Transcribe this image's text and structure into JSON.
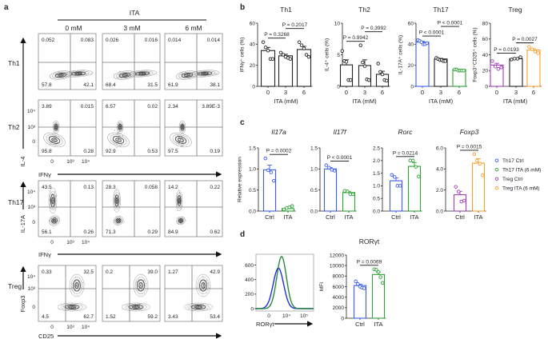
{
  "panel_labels": [
    "a",
    "b",
    "c",
    "d"
  ],
  "panel_a": {
    "treatment": "ITA",
    "columns": [
      "0 mM",
      "3 mM",
      "6 mM"
    ],
    "rows": [
      {
        "label": "Th1",
        "quadrants": [
          [
            "0.052",
            "0.083",
            "57.8",
            "42.1"
          ],
          [
            "0.026",
            "0.016",
            "68.4",
            "31.5"
          ],
          [
            "0.014",
            "0.014",
            "61.9",
            "38.1"
          ]
        ]
      },
      {
        "label": "Th2",
        "quadrants": [
          [
            "3.89",
            "0.015",
            "95.8",
            "0.28"
          ],
          [
            "6.57",
            "0.02",
            "92.9",
            "0.53"
          ],
          [
            "2.34",
            "3.89E-3",
            "97.5",
            "0.19"
          ]
        ]
      },
      {
        "label": "Th17",
        "quadrants": [
          [
            "43.5",
            "0.13",
            "56.1",
            "0.26"
          ],
          [
            "28.3",
            "0.058",
            "71.3",
            "0.29"
          ],
          [
            "14.2",
            "0.22",
            "84.9",
            "0.62"
          ]
        ]
      },
      {
        "label": "Treg",
        "quadrants": [
          [
            "0.33",
            "32.5",
            "4.5",
            "62.7"
          ],
          [
            "0.2",
            "39.0",
            "1.52",
            "59.2"
          ],
          [
            "1.27",
            "42.9",
            "3.43",
            "53.4"
          ]
        ]
      }
    ],
    "axis_ticks": [
      "0",
      "10³",
      "10⁴"
    ],
    "y_axes": [
      "IL-4",
      "IL-17A",
      "Foxp3"
    ],
    "x_axes": [
      "IFNγ",
      "IFNγ",
      "CD25"
    ]
  },
  "chart_data": [
    {
      "type": "bar",
      "panel": "b",
      "title": "Th1",
      "xlabel": "ITA (mM)",
      "ylabel": "IFNγ⁺ cells (%)",
      "categories": [
        "0",
        "3",
        "6"
      ],
      "yticks": [
        "0",
        "20",
        "40",
        "60"
      ],
      "ylim": [
        0,
        60
      ],
      "values": [
        34,
        29,
        35
      ],
      "sem": [
        3,
        1.5,
        3
      ],
      "points": [
        [
          42,
          37,
          34,
          26,
          26
        ],
        [
          32,
          30,
          28,
          27,
          26
        ],
        [
          42,
          39,
          36,
          30,
          28
        ]
      ],
      "colors": [
        "#222222",
        "#222222",
        "#222222"
      ],
      "comparisons": [
        {
          "pair": [
            0,
            1
          ],
          "label": "P = 0.3268"
        },
        {
          "pair": [
            1,
            2
          ],
          "label": "P = 0.2017"
        }
      ]
    },
    {
      "type": "bar",
      "panel": "b",
      "title": "Th2",
      "xlabel": "ITA (mM)",
      "ylabel": "IL-4⁺ cells (%)",
      "categories": [
        "0",
        "3",
        "6"
      ],
      "yticks": [
        "0",
        "5",
        "10"
      ],
      "ylim": [
        0,
        10
      ],
      "values": [
        3.4,
        3.3,
        1.9
      ],
      "sem": [
        0.8,
        0.9,
        0.5
      ],
      "points": [
        [
          5.6,
          4.0,
          3.9,
          1.0,
          1.0
        ],
        [
          6.5,
          3.8,
          3.2,
          1.1,
          1.0
        ],
        [
          3.6,
          2.3,
          1.9,
          1.0,
          0.9
        ]
      ],
      "colors": [
        "#222222",
        "#222222",
        "#222222"
      ],
      "comparisons": [
        {
          "pair": [
            0,
            1
          ],
          "label": "P = 0.9942"
        },
        {
          "pair": [
            1,
            2
          ],
          "label": "P = 0.3992"
        }
      ]
    },
    {
      "type": "bar",
      "panel": "b",
      "title": "Th17",
      "xlabel": "ITA (mM)",
      "ylabel": "IL-17A⁺ cells (%)",
      "categories": [
        "0",
        "3",
        "6"
      ],
      "yticks": [
        "0",
        "20",
        "40",
        "60"
      ],
      "ylim": [
        0,
        60
      ],
      "values": [
        42,
        26,
        16
      ],
      "sem": [
        0.8,
        0.6,
        0.3
      ],
      "points": [
        [
          44,
          43,
          42,
          40,
          40,
          41
        ],
        [
          27,
          26,
          25,
          25,
          24,
          24
        ],
        [
          16,
          16,
          15,
          15,
          15,
          15
        ]
      ],
      "colors": [
        "#3a5cf5",
        "#222222",
        "#2fa336"
      ],
      "comparisons": [
        {
          "pair": [
            0,
            1
          ],
          "label": "P < 0.0001"
        },
        {
          "pair": [
            1,
            2
          ],
          "label": "P < 0.0001"
        }
      ]
    },
    {
      "type": "bar",
      "panel": "b",
      "title": "Treg",
      "xlabel": "ITA (mM)",
      "ylabel": "Foxp3⁺CD25⁺ cells (%)",
      "categories": [
        "0",
        "3",
        "6"
      ],
      "yticks": [
        "0",
        "20",
        "40",
        "60",
        "80"
      ],
      "ylim": [
        0,
        80
      ],
      "values": [
        27,
        35,
        46
      ],
      "sem": [
        2.2,
        0.7,
        1.8
      ],
      "points": [
        [
          32,
          25,
          22,
          24
        ],
        [
          34,
          35,
          35,
          37
        ],
        [
          50,
          47,
          44,
          42
        ]
      ],
      "colors": [
        "#a33cb8",
        "#222222",
        "#f5a02a"
      ],
      "comparisons": [
        {
          "pair": [
            0,
            1
          ],
          "label": "P = 0.0193"
        },
        {
          "pair": [
            1,
            2
          ],
          "label": "P = 0.0027"
        }
      ]
    },
    {
      "type": "bar",
      "panel": "c",
      "title": "Il17a",
      "ylabel": "Relative expression",
      "categories": [
        "Ctrl",
        "ITA"
      ],
      "yticks": [
        "0.0",
        "0.5",
        "1.0",
        "1.5"
      ],
      "ylim": [
        0,
        1.5
      ],
      "values": [
        0.98,
        0.06
      ],
      "sem": [
        0.11,
        0.02
      ],
      "points": [
        [
          1.25,
          0.97,
          0.92,
          0.72
        ],
        [
          0.04,
          0.07,
          0.09,
          0.12
        ]
      ],
      "colors": [
        "#3a5cf5",
        "#2fa336"
      ],
      "comparisons": [
        {
          "pair": [
            0,
            1
          ],
          "label": "P = 0.0002"
        }
      ]
    },
    {
      "type": "bar",
      "panel": "c",
      "title": "Il17f",
      "categories": [
        "Ctrl",
        "ITA"
      ],
      "yticks": [
        "0.0",
        "0.5",
        "1.0",
        "1.5"
      ],
      "ylim": [
        0,
        1.5
      ],
      "values": [
        1.0,
        0.44
      ],
      "sem": [
        0.03,
        0.03
      ],
      "points": [
        [
          1.09,
          1.03,
          0.98,
          0.96
        ],
        [
          0.48,
          0.47,
          0.4,
          0.4
        ]
      ],
      "colors": [
        "#3a5cf5",
        "#2fa336"
      ],
      "comparisons": [
        {
          "pair": [
            0,
            1
          ],
          "label": "P < 0.0001"
        }
      ]
    },
    {
      "type": "bar",
      "panel": "c",
      "title": "Rorc",
      "categories": [
        "Ctrl",
        "ITA"
      ],
      "yticks": [
        "0.0",
        "0.5",
        "1.0",
        "1.5",
        "2.0",
        "2.5"
      ],
      "ylim": [
        0,
        2.5
      ],
      "values": [
        1.2,
        1.77
      ],
      "sem": [
        0.11,
        0.15
      ],
      "points": [
        [
          1.43,
          1.35,
          1.0,
          1.0
        ],
        [
          2.0,
          2.0,
          1.75,
          1.37
        ]
      ],
      "colors": [
        "#3a5cf5",
        "#2fa336"
      ],
      "comparisons": [
        {
          "pair": [
            0,
            1
          ],
          "label": "P = 0.0214"
        }
      ]
    },
    {
      "type": "bar",
      "panel": "c",
      "title": "Foxp3",
      "categories": [
        "Ctrl",
        "ITA"
      ],
      "yticks": [
        "0.0",
        "2.0",
        "4.0",
        "6.0"
      ],
      "ylim": [
        0,
        6
      ],
      "values": [
        1.55,
        4.55
      ],
      "sem": [
        0.33,
        0.42
      ],
      "points": [
        [
          2.3,
          1.85,
          0.9,
          1.0
        ],
        [
          5.4,
          4.8,
          4.5,
          3.4
        ]
      ],
      "colors": [
        "#a33cb8",
        "#f5a02a"
      ],
      "comparisons": [
        {
          "pair": [
            0,
            1
          ],
          "label": "P = 0.0015"
        }
      ]
    },
    {
      "type": "line",
      "panel": "d",
      "xlabel": "RORγt",
      "xticks": [
        "0",
        "10⁴",
        "10⁵"
      ],
      "yticks": [
        "0",
        "200",
        "400",
        "600"
      ],
      "ylim": [
        0,
        750
      ],
      "series": [
        {
          "color": "#1f2ee8",
          "peak": 560
        },
        {
          "color": "#2a8a3a",
          "peak": 720
        }
      ]
    },
    {
      "type": "bar",
      "panel": "d",
      "title": "RORγt",
      "ylabel": "MFI",
      "categories": [
        "Ctrl",
        "ITA"
      ],
      "yticks": [
        "0",
        "2000",
        "4000",
        "6000",
        "8000",
        "10000",
        "12000"
      ],
      "ylim": [
        0,
        12000
      ],
      "values": [
        6200,
        8300
      ],
      "sem": [
        250,
        450
      ],
      "points": [
        [
          7000,
          6500,
          6000,
          5800,
          5700
        ],
        [
          9300,
          9200,
          8800,
          7800,
          6700
        ]
      ],
      "colors": [
        "#3a5cf5",
        "#2fa336"
      ],
      "comparisons": [
        {
          "pair": [
            0,
            1
          ],
          "label": "P = 0.0069"
        }
      ]
    }
  ],
  "legend_c": [
    {
      "label": "Th17 Ctrl",
      "color": "#3a5cf5"
    },
    {
      "label": "Th17 ITA (6 mM)",
      "color": "#2fa336"
    },
    {
      "label": "Treg Ctrl",
      "color": "#a33cb8"
    },
    {
      "label": "Treg ITA (6 mM)",
      "color": "#f5a02a"
    }
  ]
}
